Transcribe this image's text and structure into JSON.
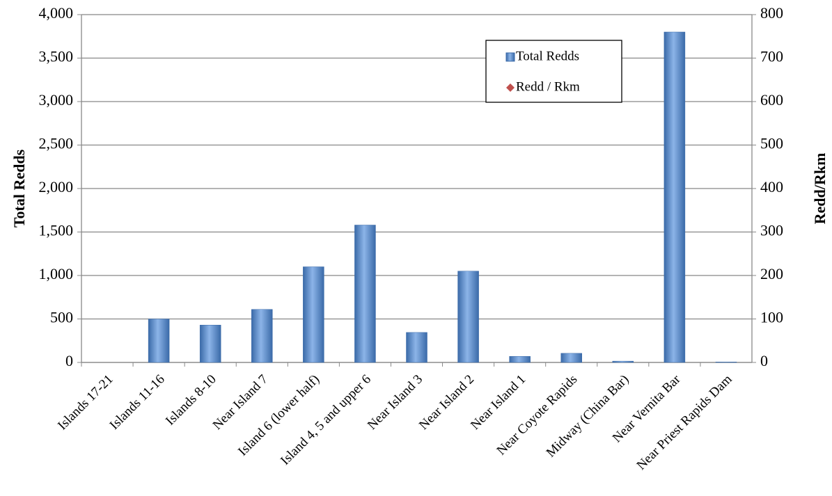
{
  "chart_data": {
    "type": "bar",
    "categories": [
      "Islands 17-21",
      "Islands 11-16",
      "Islands 8-10",
      "Near Island 7",
      "Island 6 (lower half)",
      "Island 4, 5 and upper 6",
      "Near Island 3",
      "Near Island 2",
      "Near Island 1",
      "Near Coyote Rapids",
      "Midway (China Bar)",
      "Near Vernita Bar",
      "Near Priest Rapids Dam"
    ],
    "series": [
      {
        "name": "Total Redds",
        "color": "#4f81bd",
        "values": [
          0,
          500,
          430,
          610,
          1100,
          1580,
          345,
          1050,
          70,
          105,
          15,
          3800,
          5
        ]
      },
      {
        "name": "Redd / Rkm",
        "color": "#c0504d",
        "axis": "y2",
        "values": [
          null,
          null,
          null,
          null,
          null,
          null,
          null,
          null,
          null,
          null,
          null,
          null,
          null
        ]
      }
    ],
    "y_label": "Total Redds",
    "y2_label": "Redd/Rkm",
    "ylim": [
      0,
      4000
    ],
    "yticks": [
      0,
      500,
      {
        "value": 1000,
        "label": "1,000"
      },
      {
        "value": 1500,
        "label": "1,500"
      },
      {
        "value": 2000,
        "label": "2,000"
      },
      {
        "value": 2500,
        "label": "2,500"
      },
      {
        "value": 3000,
        "label": "3,000"
      },
      {
        "value": 3500,
        "label": "3,500"
      },
      {
        "value": 4000,
        "label": "4,000"
      }
    ],
    "y2lim": [
      0,
      800
    ],
    "y2ticks": [
      0,
      100,
      200,
      300,
      400,
      500,
      600,
      700,
      800
    ],
    "grid": true,
    "legend": "top-right"
  }
}
